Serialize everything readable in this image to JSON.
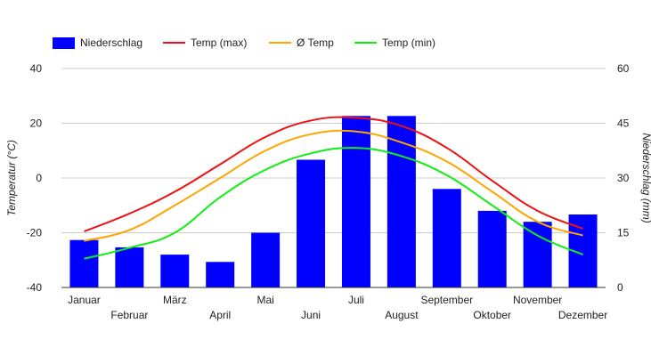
{
  "chart_data": {
    "type": "bar",
    "categories": [
      "Januar",
      "Februar",
      "März",
      "April",
      "Mai",
      "Juni",
      "Juli",
      "August",
      "September",
      "Oktober",
      "November",
      "Dezember"
    ],
    "series": [
      {
        "name": "Niederschlag",
        "kind": "bar",
        "axis": "right",
        "color": "#0000ff",
        "values": [
          13,
          11,
          9,
          7,
          15,
          35,
          47,
          47,
          27,
          21,
          18,
          20
        ]
      },
      {
        "name": "Temp (max)",
        "kind": "line",
        "axis": "left",
        "color": "#ee1111",
        "values": [
          -19.5,
          -13,
          -5,
          5,
          15,
          21,
          22,
          19,
          11,
          -1,
          -12,
          -18.5
        ]
      },
      {
        "name": "Ø Temp",
        "kind": "line",
        "axis": "left",
        "color": "#ffa500",
        "values": [
          -23,
          -19,
          -10,
          0,
          10,
          16,
          17,
          13,
          6,
          -5,
          -16,
          -21
        ]
      },
      {
        "name": "Temp (min)",
        "kind": "line",
        "axis": "left",
        "color": "#11ee11",
        "values": [
          -29.5,
          -25.5,
          -20,
          -7,
          3,
          9,
          11,
          8,
          1,
          -10,
          -21,
          -28
        ]
      }
    ],
    "ylabel_left": "Temperatur (°C)",
    "ylabel_right": "Niederschlag (mm)",
    "ylim_left": [
      -40,
      40
    ],
    "ylim_right": [
      0,
      60
    ],
    "yticks_left": [
      40,
      20,
      0,
      -20,
      -40
    ],
    "yticks_right": [
      60,
      45,
      30,
      15,
      0
    ],
    "grid": true,
    "legend_position": "top-left"
  }
}
